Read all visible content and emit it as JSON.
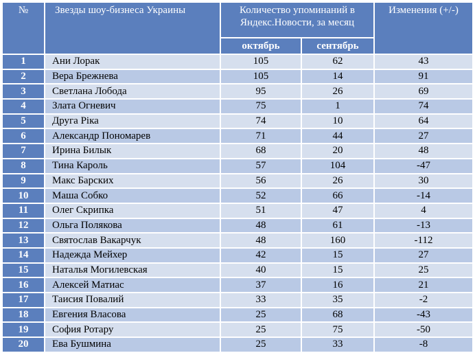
{
  "headers": {
    "num": "№",
    "name": "Звезды шоу-бизнеса Украины",
    "mentions": "Количество упоминаний в Яндекс.Новости, за месяц",
    "change": "Изменения (+/-)",
    "october": "октябрь",
    "september": "сентябрь"
  },
  "rows": [
    {
      "num": "1",
      "name": "Ани Лорак",
      "oct": "105",
      "sep": "62",
      "change": "43"
    },
    {
      "num": "2",
      "name": "Вера Брежнева",
      "oct": "105",
      "sep": "14",
      "change": "91"
    },
    {
      "num": "3",
      "name": "Светлана Лобода",
      "oct": "95",
      "sep": "26",
      "change": "69"
    },
    {
      "num": "4",
      "name": "Злата Огневич",
      "oct": "75",
      "sep": "1",
      "change": "74"
    },
    {
      "num": "5",
      "name": "Друга Ріка",
      "oct": "74",
      "sep": "10",
      "change": "64"
    },
    {
      "num": "6",
      "name": "Александр Пономарев",
      "oct": "71",
      "sep": "44",
      "change": "27"
    },
    {
      "num": "7",
      "name": "Ирина Билык",
      "oct": "68",
      "sep": "20",
      "change": "48"
    },
    {
      "num": "8",
      "name": "Тина Кароль",
      "oct": "57",
      "sep": "104",
      "change": "-47"
    },
    {
      "num": "9",
      "name": "Макс Барских",
      "oct": "56",
      "sep": "26",
      "change": "30"
    },
    {
      "num": "10",
      "name": "Маша Собко",
      "oct": "52",
      "sep": "66",
      "change": "-14"
    },
    {
      "num": "11",
      "name": "Олег Скрипка",
      "oct": "51",
      "sep": "47",
      "change": "4"
    },
    {
      "num": "12",
      "name": "Ольга Полякова",
      "oct": "48",
      "sep": "61",
      "change": "-13"
    },
    {
      "num": "13",
      "name": "Святослав Вакарчук",
      "oct": "48",
      "sep": "160",
      "change": "-112"
    },
    {
      "num": "14",
      "name": "Надежда Мейхер",
      "oct": "42",
      "sep": "15",
      "change": "27"
    },
    {
      "num": "15",
      "name": "Наталья Могилевская",
      "oct": "40",
      "sep": "15",
      "change": "25"
    },
    {
      "num": "16",
      "name": "Алексей Матиас",
      "oct": "37",
      "sep": "16",
      "change": "21"
    },
    {
      "num": "17",
      "name": "Таисия Повалий",
      "oct": "33",
      "sep": "35",
      "change": "-2"
    },
    {
      "num": "18",
      "name": "Евгения Власова",
      "oct": "25",
      "sep": "68",
      "change": "-43"
    },
    {
      "num": "19",
      "name": "София Ротару",
      "oct": "25",
      "sep": "75",
      "change": "-50"
    },
    {
      "num": "20",
      "name": "Ева Бушмина",
      "oct": "25",
      "sep": "33",
      "change": "-8"
    }
  ],
  "colors": {
    "header_bg": "#5b7fbd",
    "row_light": "#d6dfee",
    "row_dark": "#b9c9e5"
  }
}
